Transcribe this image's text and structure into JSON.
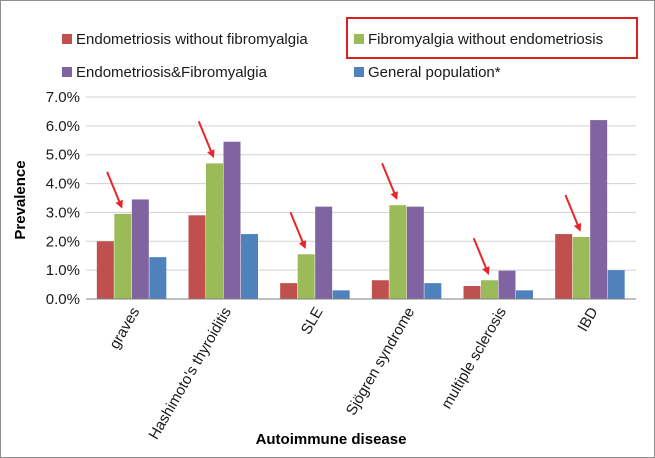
{
  "chart_data": {
    "type": "bar",
    "title": "",
    "xlabel": "Autoimmune disease",
    "ylabel": "Prevalence",
    "ylim": [
      0,
      0.07
    ],
    "ytick_labels": [
      "0.0%",
      "1.0%",
      "2.0%",
      "3.0%",
      "4.0%",
      "5.0%",
      "6.0%",
      "7.0%"
    ],
    "grid": true,
    "legend_position": "top",
    "highlighted_series": "Fibromyalgia without endometriosis",
    "categories": [
      "graves",
      "Hashimoto's thyroiditis",
      "SLE",
      "Sjögren syndrome",
      "multiple sclerosis",
      "IBD"
    ],
    "series": [
      {
        "name": "Endometriosis without fibromyalgia",
        "color": "#c0504d",
        "values": [
          0.02,
          0.029,
          0.0055,
          0.0065,
          0.0045,
          0.0225
        ]
      },
      {
        "name": "Fibromyalgia without endometriosis",
        "color": "#9bbb59",
        "values": [
          0.0295,
          0.047,
          0.0155,
          0.0325,
          0.0065,
          0.0215
        ]
      },
      {
        "name": "Endometriosis&Fibromyalgia",
        "color": "#8064a2",
        "values": [
          0.0345,
          0.0545,
          0.032,
          0.032,
          0.0098,
          0.062
        ]
      },
      {
        "name": "General population*",
        "color": "#4f81bd",
        "values": [
          0.0145,
          0.0225,
          0.003,
          0.0055,
          0.003,
          0.01
        ]
      }
    ],
    "arrow_color": "#e8262a",
    "highlight_box_color": "#d9221f"
  }
}
